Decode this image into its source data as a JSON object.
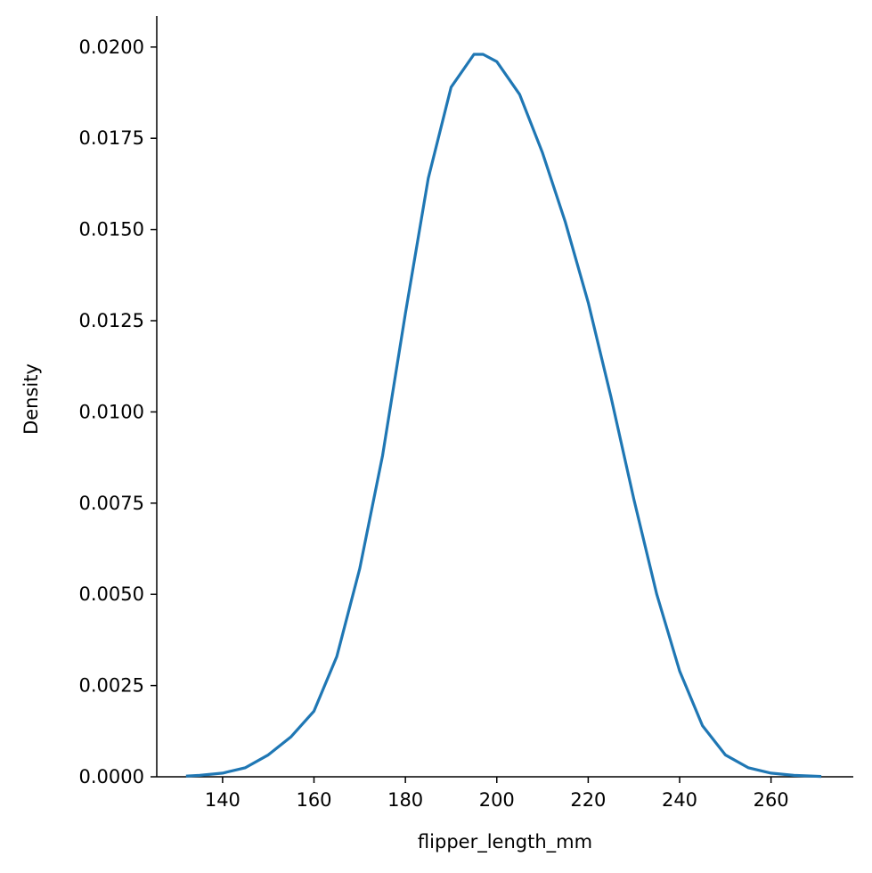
{
  "chart_data": {
    "type": "line",
    "x_label": "flipper_length_mm",
    "y_label": "Density",
    "x": [
      132,
      135,
      140,
      145,
      150,
      155,
      160,
      165,
      170,
      175,
      180,
      185,
      190,
      195,
      197,
      200,
      205,
      210,
      215,
      220,
      225,
      230,
      235,
      240,
      245,
      250,
      255,
      260,
      265,
      271
    ],
    "series": [
      {
        "name": "flipper_length_mm",
        "color": "#1f77b4",
        "values": [
          2e-05,
          4e-05,
          0.0001,
          0.00025,
          0.0006,
          0.0011,
          0.0018,
          0.0033,
          0.0057,
          0.0088,
          0.0127,
          0.0164,
          0.0189,
          0.0198,
          0.0198,
          0.0196,
          0.0187,
          0.0171,
          0.0152,
          0.013,
          0.0104,
          0.0076,
          0.005,
          0.0029,
          0.0014,
          0.0006,
          0.00025,
          0.0001,
          4e-05,
          1e-05
        ]
      }
    ],
    "xlim": [
      125.6,
      278
    ],
    "ylim": [
      0,
      0.02085
    ],
    "xticks": [
      140,
      160,
      180,
      200,
      220,
      240,
      260
    ],
    "yticks": [
      {
        "value": 0,
        "label": "0.0000"
      },
      {
        "value": 0.0025,
        "label": "0.0025"
      },
      {
        "value": 0.005,
        "label": "0.0050"
      },
      {
        "value": 0.0075,
        "label": "0.0075"
      },
      {
        "value": 0.01,
        "label": "0.0100"
      },
      {
        "value": 0.0125,
        "label": "0.0125"
      },
      {
        "value": 0.015,
        "label": "0.0150"
      },
      {
        "value": 0.0175,
        "label": "0.0175"
      },
      {
        "value": 0.02,
        "label": "0.0200"
      }
    ],
    "grid": false
  }
}
